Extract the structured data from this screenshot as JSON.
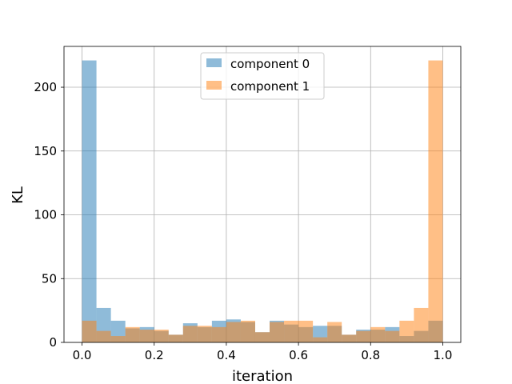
{
  "chart_data": {
    "type": "bar",
    "subtype": "overlaid-histogram",
    "title": "",
    "xlabel": "iteration",
    "ylabel": "KL",
    "xlim": [
      -0.05,
      1.05
    ],
    "ylim": [
      0,
      232
    ],
    "x_ticks": [
      0.0,
      0.2,
      0.4,
      0.6,
      0.8,
      1.0
    ],
    "x_tick_labels": [
      "0.0",
      "0.2",
      "0.4",
      "0.6",
      "0.8",
      "1.0"
    ],
    "y_ticks": [
      0,
      50,
      100,
      150,
      200
    ],
    "y_tick_labels": [
      "0",
      "50",
      "100",
      "150",
      "200"
    ],
    "grid": true,
    "legend_position": "upper center",
    "bin_edges": [
      0.0,
      0.04,
      0.08,
      0.12,
      0.16,
      0.2,
      0.24,
      0.28,
      0.32,
      0.36,
      0.4,
      0.44,
      0.48,
      0.52,
      0.56,
      0.6,
      0.64,
      0.68,
      0.72,
      0.76,
      0.8,
      0.84,
      0.88,
      0.92,
      0.96,
      1.0
    ],
    "series": [
      {
        "name": "component 0",
        "color": "#1f77b4",
        "opacity": 0.5,
        "values": [
          221,
          27,
          17,
          11,
          12,
          9,
          6,
          15,
          12,
          17,
          18,
          16,
          8,
          17,
          14,
          12,
          13,
          13,
          6,
          10,
          10,
          12,
          5,
          9,
          17
        ]
      },
      {
        "name": "component 1",
        "color": "#ff7f0e",
        "opacity": 0.5,
        "values": [
          17,
          9,
          5,
          12,
          10,
          10,
          6,
          13,
          13,
          12,
          16,
          17,
          8,
          16,
          17,
          17,
          4,
          16,
          6,
          9,
          12,
          9,
          17,
          27,
          221
        ]
      }
    ]
  }
}
